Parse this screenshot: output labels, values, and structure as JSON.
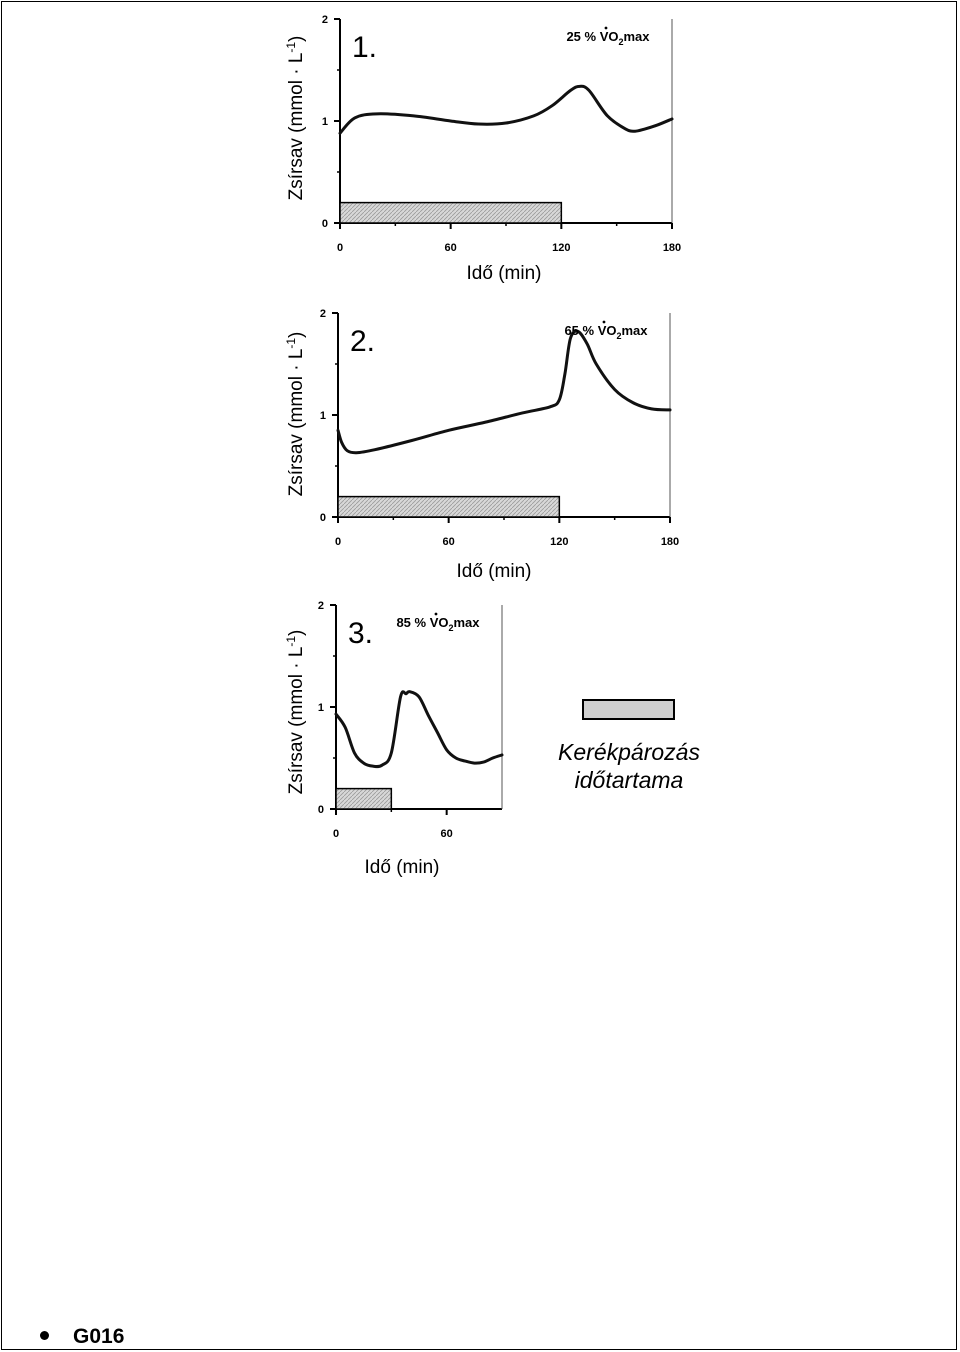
{
  "chart_data": [
    {
      "type": "line",
      "panel_label": "1.",
      "intensity": "25 % VO",
      "intensity_sub": "2",
      "intensity_tail": "max",
      "ylabel": "Zsírsav (mmol · L",
      "ylabel_sup": "-1",
      "ylabel_close": ")",
      "xlabel": "Idő (min)",
      "xlim": [
        0,
        180
      ],
      "ylim": [
        0,
        2
      ],
      "xticks": [
        0,
        60,
        120,
        180
      ],
      "yticks": [
        0,
        1,
        2
      ],
      "cycling_bar": [
        0,
        120
      ],
      "series": [
        {
          "x": [
            0,
            8,
            20,
            40,
            60,
            75,
            90,
            105,
            115,
            125,
            130,
            135,
            145,
            155,
            160,
            165,
            172,
            180
          ],
          "y": [
            0.88,
            1.03,
            1.07,
            1.05,
            1.0,
            0.97,
            0.98,
            1.05,
            1.15,
            1.3,
            1.34,
            1.3,
            1.05,
            0.92,
            0.9,
            0.92,
            0.96,
            1.02
          ]
        }
      ]
    },
    {
      "type": "line",
      "panel_label": "2.",
      "intensity": "65 % VO",
      "intensity_sub": "2",
      "intensity_tail": "max",
      "ylabel": "Zsírsav (mmol · L",
      "ylabel_sup": "-1",
      "ylabel_close": ")",
      "xlabel": "Idő (min)",
      "xlim": [
        0,
        180
      ],
      "ylim": [
        0,
        2
      ],
      "xticks": [
        0,
        60,
        120,
        180
      ],
      "yticks": [
        0,
        1,
        2
      ],
      "cycling_bar": [
        0,
        120
      ],
      "series": [
        {
          "x": [
            0,
            2,
            5,
            10,
            20,
            40,
            60,
            80,
            100,
            115,
            120,
            123,
            126,
            130,
            135,
            140,
            150,
            160,
            170,
            180
          ],
          "y": [
            0.85,
            0.73,
            0.65,
            0.63,
            0.66,
            0.75,
            0.85,
            0.93,
            1.02,
            1.08,
            1.15,
            1.4,
            1.75,
            1.82,
            1.7,
            1.5,
            1.25,
            1.12,
            1.06,
            1.05
          ]
        }
      ]
    },
    {
      "type": "line",
      "panel_label": "3.",
      "intensity": "85 % VO",
      "intensity_sub": "2",
      "intensity_tail": "max",
      "ylabel": "Zsírsav (mmol · L",
      "ylabel_sup": "-1",
      "ylabel_close": ")",
      "xlabel": "Idő (min)",
      "xlim": [
        0,
        90
      ],
      "ylim": [
        0,
        2
      ],
      "xticks": [
        0,
        60
      ],
      "yticks": [
        0,
        1,
        2
      ],
      "cycling_bar": [
        0,
        30
      ],
      "series": [
        {
          "x": [
            0,
            5,
            10,
            15,
            20,
            25,
            30,
            35,
            38,
            40,
            45,
            50,
            55,
            60,
            65,
            70,
            75,
            80,
            85,
            90
          ],
          "y": [
            0.93,
            0.8,
            0.55,
            0.45,
            0.42,
            0.43,
            0.55,
            1.1,
            1.13,
            1.15,
            1.1,
            0.92,
            0.75,
            0.58,
            0.5,
            0.47,
            0.45,
            0.46,
            0.5,
            0.53
          ]
        }
      ]
    }
  ],
  "legend": {
    "label_line1": "Kerékpározás",
    "label_line2": "időtartama",
    "box_color": "#cfcfcf"
  },
  "footer": {
    "code": "G016"
  }
}
